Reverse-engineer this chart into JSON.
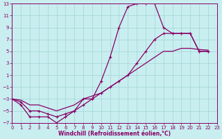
{
  "xlabel": "Windchill (Refroidissement éolien,°C)",
  "bg_color": "#c8eef0",
  "grid_color": "#a8d8d8",
  "line_color": "#880066",
  "xmin": 0,
  "xmax": 23,
  "ymin": -7,
  "ymax": 13,
  "xticks": [
    0,
    1,
    2,
    3,
    4,
    5,
    6,
    7,
    8,
    9,
    10,
    11,
    12,
    13,
    14,
    15,
    16,
    17,
    18,
    19,
    20,
    21,
    22,
    23
  ],
  "yticks": [
    -7,
    -5,
    -3,
    -1,
    1,
    3,
    5,
    7,
    9,
    11,
    13
  ],
  "curve1_x": [
    0,
    1,
    2,
    3,
    4,
    5,
    6,
    7,
    8,
    9,
    10,
    11,
    12,
    13,
    14,
    15,
    16,
    17,
    18,
    19,
    20,
    21,
    22
  ],
  "curve1_y": [
    -3,
    -4,
    -6,
    -6,
    -6,
    -7,
    -6,
    -5,
    -3,
    -3,
    0,
    4,
    9,
    12.5,
    13,
    13,
    13,
    9,
    8,
    8,
    8,
    5,
    5
  ],
  "curve2_x": [
    0,
    1,
    2,
    3,
    4,
    5,
    6,
    7,
    8,
    9,
    10,
    11,
    12,
    13,
    14,
    15,
    16,
    17,
    18,
    19,
    20,
    21,
    22
  ],
  "curve2_y": [
    -3,
    -3.5,
    -5,
    -5,
    -5.5,
    -6,
    -5.5,
    -5,
    -4,
    -3,
    -2,
    -1,
    0,
    1,
    3,
    5,
    7,
    8,
    8,
    8,
    8,
    5,
    5
  ],
  "curve3_x": [
    0,
    1,
    2,
    3,
    4,
    5,
    6,
    7,
    8,
    9,
    10,
    11,
    12,
    13,
    14,
    15,
    16,
    17,
    18,
    19,
    20,
    21,
    22
  ],
  "curve3_y": [
    -3,
    -3.2,
    -4,
    -4,
    -4.5,
    -5,
    -4.5,
    -4,
    -3,
    -2.5,
    -2,
    -1,
    0,
    1,
    2,
    3,
    4,
    5,
    5,
    5.5,
    5.5,
    5.3,
    5.2
  ]
}
